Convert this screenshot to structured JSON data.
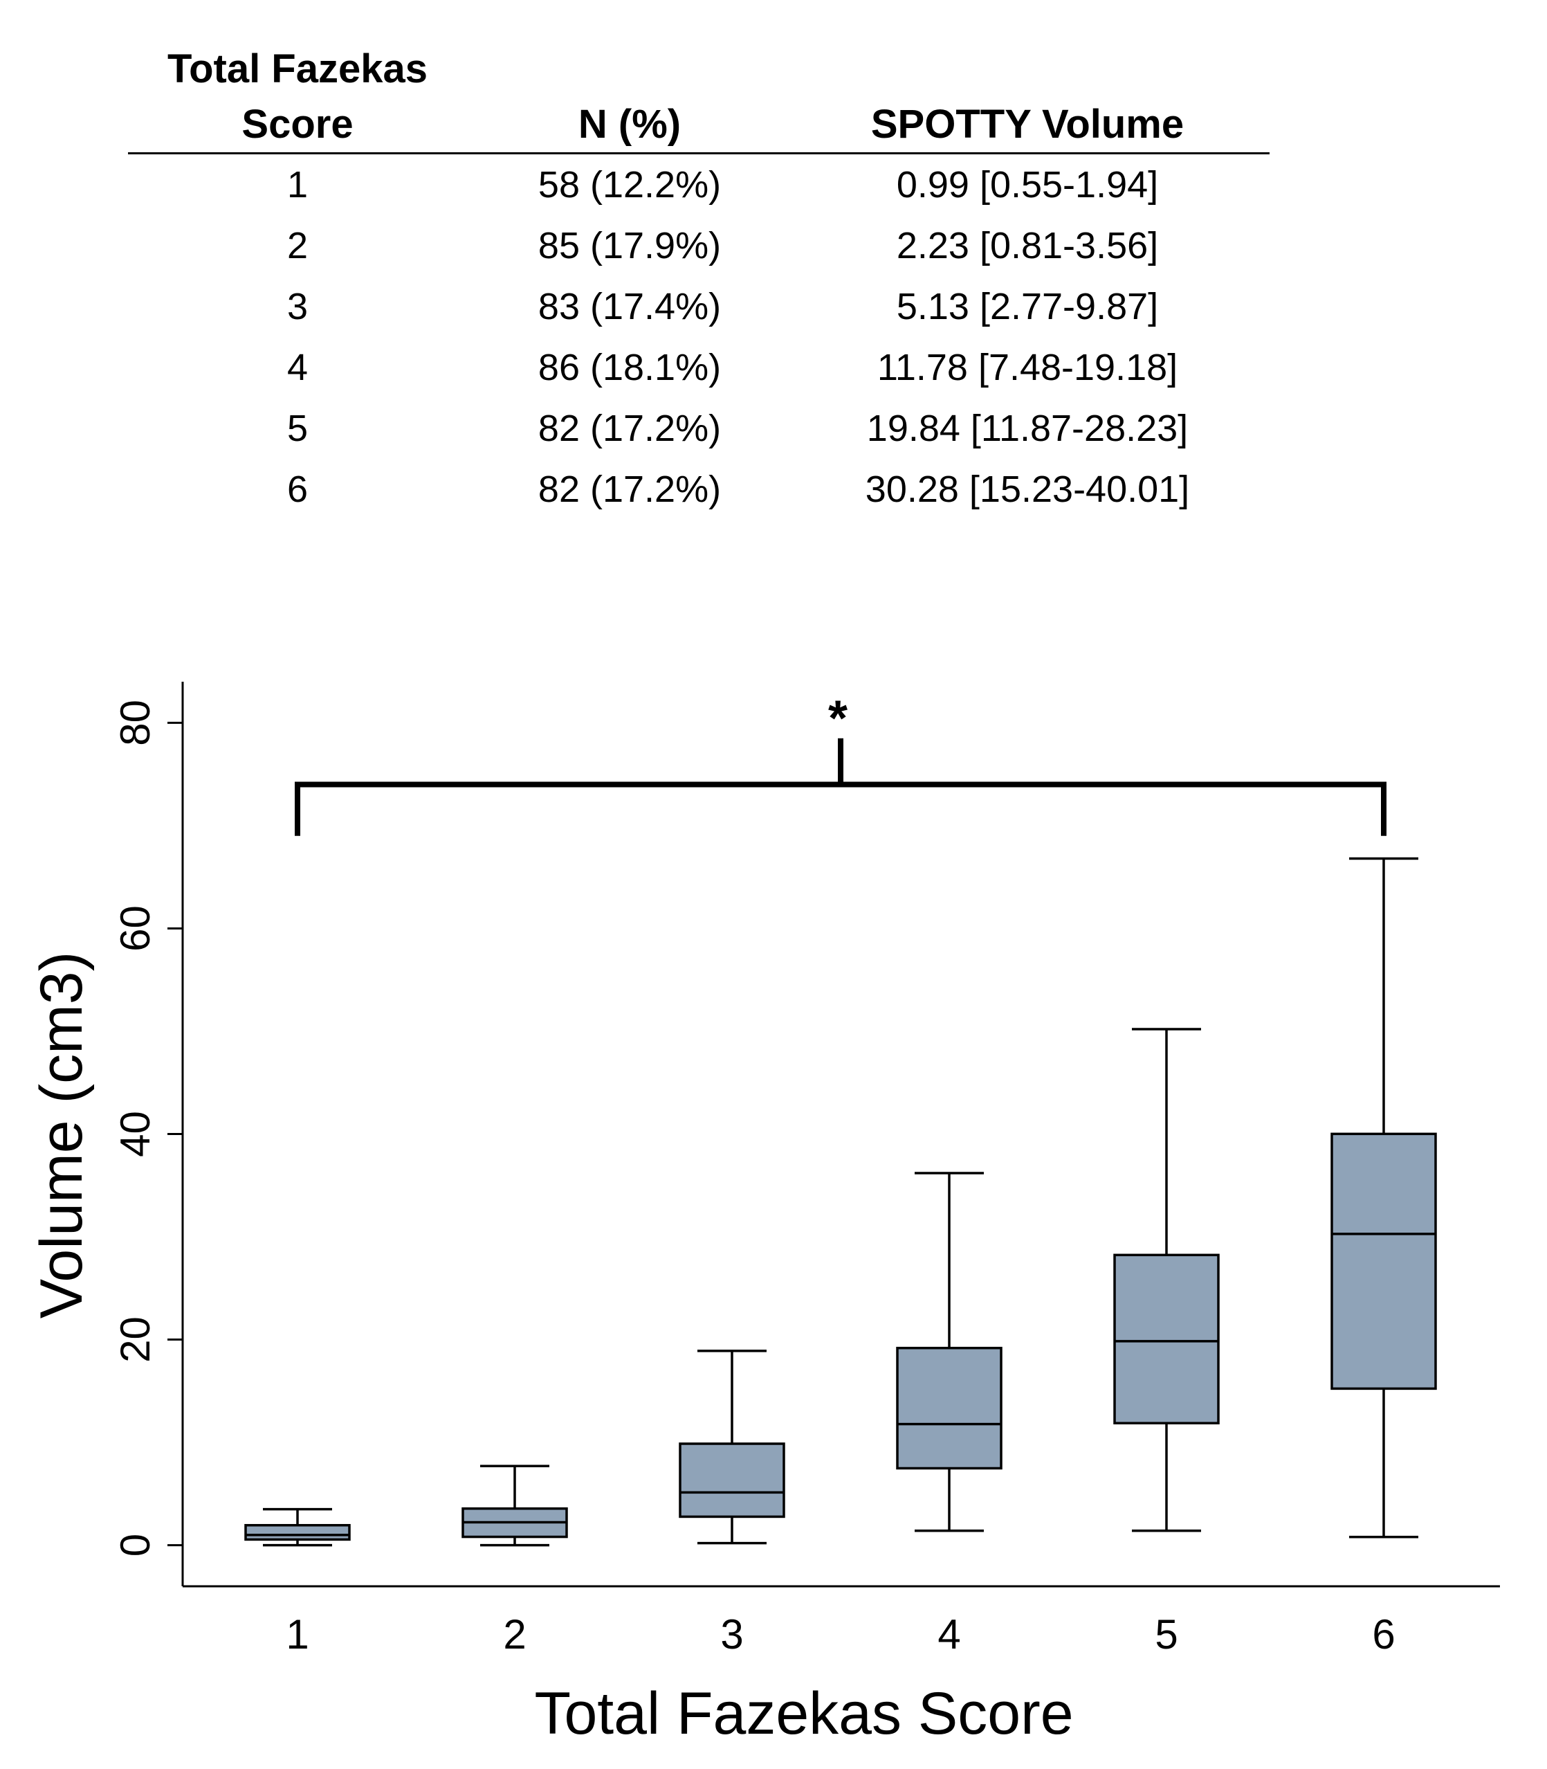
{
  "table": {
    "headers": {
      "score_line1": "Total Fazekas",
      "score_line2": "Score",
      "n": "N (%)",
      "volume": "SPOTTY Volume"
    },
    "rows": [
      {
        "score": "1",
        "n": "58 (12.2%)",
        "volume": "0.99 [0.55-1.94]"
      },
      {
        "score": "2",
        "n": "85 (17.9%)",
        "volume": "2.23 [0.81-3.56]"
      },
      {
        "score": "3",
        "n": "83 (17.4%)",
        "volume": "5.13 [2.77-9.87]"
      },
      {
        "score": "4",
        "n": "86 (18.1%)",
        "volume": "11.78 [7.48-19.18]"
      },
      {
        "score": "5",
        "n": "82 (17.2%)",
        "volume": "19.84 [11.87-28.23]"
      },
      {
        "score": "6",
        "n": "82 (17.2%)",
        "volume": "30.28 [15.23-40.01]"
      }
    ]
  },
  "chart_data": {
    "type": "box",
    "title": "",
    "xlabel": "Total Fazekas Score",
    "ylabel": "Volume (cm3)",
    "categories": [
      "1",
      "2",
      "3",
      "4",
      "5",
      "6"
    ],
    "ylim": [
      -4,
      84
    ],
    "yticks": [
      0,
      20,
      40,
      60,
      80
    ],
    "boxes": [
      {
        "category": "1",
        "whisker_low": 0,
        "q1": 0.55,
        "median": 0.99,
        "q3": 1.94,
        "whisker_high": 3.5
      },
      {
        "category": "2",
        "whisker_low": 0,
        "q1": 0.81,
        "median": 2.23,
        "q3": 3.56,
        "whisker_high": 7.7
      },
      {
        "category": "3",
        "whisker_low": 0.2,
        "q1": 2.77,
        "median": 5.13,
        "q3": 9.87,
        "whisker_high": 18.9
      },
      {
        "category": "4",
        "whisker_low": 1.4,
        "q1": 7.48,
        "median": 11.78,
        "q3": 19.18,
        "whisker_high": 36.2
      },
      {
        "category": "5",
        "whisker_low": 1.4,
        "q1": 11.87,
        "median": 19.84,
        "q3": 28.23,
        "whisker_high": 50.2
      },
      {
        "category": "6",
        "whisker_low": 0.8,
        "q1": 15.23,
        "median": 30.28,
        "q3": 40.01,
        "whisker_high": 66.8
      }
    ],
    "significance": {
      "label": "*",
      "from_category": "1",
      "to_category": "6",
      "bracket_y": 74,
      "bracket_drop_y": 69,
      "stem_top_y": 78.5
    },
    "box_fill": "#8fa3b8",
    "line_color": "#000000"
  }
}
